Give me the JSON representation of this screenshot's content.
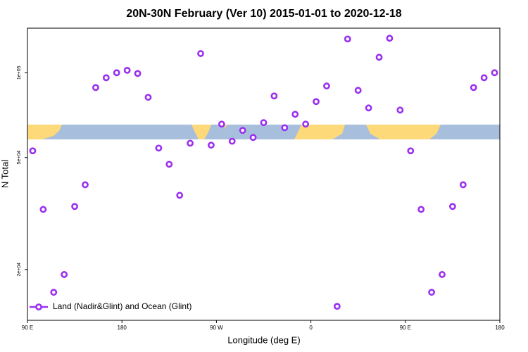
{
  "chart_data": {
    "type": "scatter",
    "title": "20N-30N February (Ver 10)   2015-01-01 to 2020-12-18",
    "x_label": "Longitude (deg E)",
    "y_label": "N Total",
    "xlim": [
      90,
      540
    ],
    "xticks": [
      {
        "value": 90,
        "label": "90 E"
      },
      {
        "value": 180,
        "label": "180"
      },
      {
        "value": 270,
        "label": "90 W"
      },
      {
        "value": 360,
        "label": "0"
      },
      {
        "value": 450,
        "label": "90 E"
      },
      {
        "value": 540,
        "label": "180"
      }
    ],
    "ylim": [
      13200,
      144000
    ],
    "yticks": [
      {
        "value": 20000,
        "label": "2e+04"
      },
      {
        "value": 50000,
        "label": "5e+04"
      },
      {
        "value": 100000,
        "label": "1e+05"
      }
    ],
    "y_log": true,
    "legend_position": "bottom left",
    "series": [
      {
        "name": "Land (Nadir&Glint) and Ocean (Glint)",
        "color": "#9b30f0",
        "x": [
          95,
          105,
          115,
          125,
          135,
          145,
          155,
          165,
          175,
          185,
          195,
          205,
          215,
          225,
          235,
          245,
          255,
          265,
          275,
          285,
          295,
          305,
          315,
          325,
          335,
          345,
          355,
          365,
          375,
          385,
          395,
          405,
          415,
          425,
          435,
          445,
          455,
          465,
          475,
          485,
          495,
          505,
          515,
          525,
          535
        ],
        "values": [
          52800,
          32700,
          16600,
          19200,
          33500,
          40000,
          88600,
          96000,
          100000,
          102000,
          99400,
          81800,
          54000,
          47300,
          36700,
          56200,
          117000,
          55300,
          65700,
          57100,
          62400,
          58900,
          66500,
          82700,
          63800,
          71200,
          65700,
          79000,
          89700,
          14800,
          131800,
          86600,
          75000,
          113500,
          132600,
          73700,
          52800,
          32700,
          16600,
          19200,
          33500,
          40000,
          88600,
          96000,
          100000
        ]
      }
    ]
  }
}
